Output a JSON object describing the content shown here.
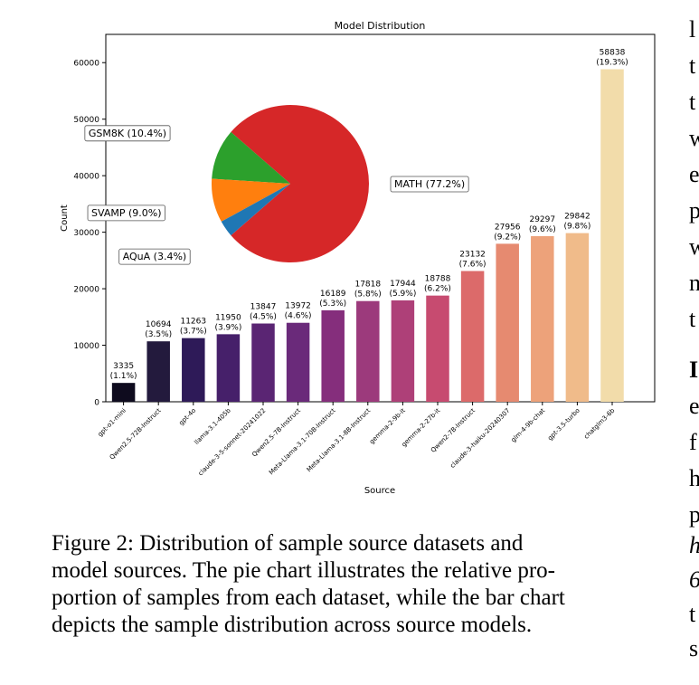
{
  "chart_data": [
    {
      "type": "bar",
      "title": "Model Distribution",
      "xlabel": "Source",
      "ylabel": "Count",
      "ylim": [
        0,
        65000
      ],
      "yticks": [
        "0",
        "10000",
        "20000",
        "30000",
        "40000",
        "50000",
        "60000"
      ],
      "grid": false,
      "categories": [
        "gpt-o1-mini",
        "Qwen2.5-72B-Instruct",
        "gpt-4o",
        "llama-3.1-405b",
        "claude-3-5-sonnet-20241022",
        "Qwen2.5-7B-Instruct",
        "Meta-Llama-3.1-70B-Instruct",
        "Meta-Llama-3.1-8B-Instruct",
        "gemma-2-9b-it",
        "gemma-2-27b-it",
        "Qwen2-7B-Instruct",
        "claude-3-haiku-20240307",
        "glm-4-9b-chat",
        "gpt-3.5-turbo",
        "chatglm3-6b"
      ],
      "values": [
        3335,
        10694,
        11263,
        11950,
        13847,
        13972,
        16189,
        17818,
        17944,
        18788,
        23132,
        27956,
        29297,
        29842,
        58838
      ],
      "value_labels": [
        "3335",
        "10694",
        "11263",
        "11950",
        "13847",
        "13972",
        "16189",
        "17818",
        "17944",
        "18788",
        "23132",
        "27956",
        "29297",
        "29842",
        "58838"
      ],
      "percent_labels": [
        "(1.1%)",
        "(3.5%)",
        "(3.7%)",
        "(3.9%)",
        "(4.5%)",
        "(4.6%)",
        "(5.3%)",
        "(5.8%)",
        "(5.9%)",
        "(6.2%)",
        "(7.6%)",
        "(9.2%)",
        "(9.6%)",
        "(9.8%)",
        "(19.3%)"
      ],
      "colors": [
        "#0e0b1e",
        "#231a3d",
        "#2e1a58",
        "#46206a",
        "#5a2573",
        "#6a2a7a",
        "#852e7c",
        "#9c3a7c",
        "#ae4078",
        "#c74b70",
        "#dc6a6a",
        "#e68a70",
        "#eda27a",
        "#f0bb8a",
        "#f2dcaa"
      ]
    },
    {
      "type": "pie",
      "labels": [
        "MATH (77.2%)",
        "GSM8K (10.4%)",
        "SVAMP (9.0%)",
        "AQuA (3.4%)"
      ],
      "values": [
        77.2,
        10.4,
        9.0,
        3.4
      ],
      "colors": [
        "#d62728",
        "#2ca02c",
        "#ff7f0e",
        "#1f77b4"
      ]
    }
  ],
  "caption": {
    "lines": [
      "Figure 2: Distribution of sample source datasets and",
      "model sources. The pie chart illustrates the relative pro-",
      "portion of samples from each dataset, while the bar chart",
      "depicts the sample distribution across source models."
    ]
  },
  "side_text": {
    "chars": [
      "l",
      "t",
      "t",
      "w",
      "e",
      "p",
      "w",
      "n",
      "t",
      "I",
      "e",
      "f",
      "h",
      "p",
      "h",
      "6",
      "t",
      "s"
    ]
  }
}
